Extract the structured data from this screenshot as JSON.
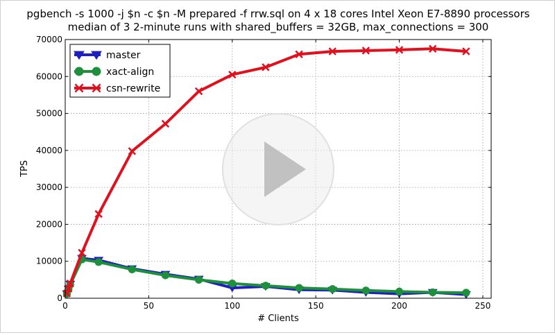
{
  "chart_data": {
    "type": "line",
    "title": "pgbench -s 1000 -j $n -c $n -M prepared -f rrw.sql on 4 x 18 cores Intel Xeon E7-8890 processors",
    "subtitle": "median of 3 2-minute runs with shared_buffers = 32GB, max_connections = 300",
    "xlabel": "# Clients",
    "ylabel": "TPS",
    "xlim": [
      0,
      255
    ],
    "ylim": [
      0,
      70000
    ],
    "x_ticks": [
      "0",
      "50",
      "100",
      "150",
      "200",
      "250"
    ],
    "y_ticks": [
      "0",
      "10000",
      "20000",
      "30000",
      "40000",
      "50000",
      "60000",
      "70000"
    ],
    "grid": true,
    "legend_position": "top-left",
    "x": [
      1,
      2,
      3,
      10,
      20,
      40,
      60,
      80,
      100,
      120,
      140,
      160,
      180,
      200,
      220,
      240
    ],
    "series": [
      {
        "name": "master",
        "color": "#1f1fbf",
        "marker": "triangle-down",
        "values": [
          1200,
          2500,
          3800,
          10800,
          10300,
          8000,
          6500,
          5200,
          2800,
          3200,
          2300,
          2200,
          1600,
          1200,
          1600,
          1000
        ]
      },
      {
        "name": "xact-align",
        "color": "#1e8f3a",
        "marker": "circle",
        "values": [
          1200,
          2500,
          3700,
          10500,
          9800,
          7800,
          6200,
          5000,
          4000,
          3400,
          2800,
          2500,
          2100,
          1800,
          1600,
          1500
        ]
      },
      {
        "name": "csn-rewrite",
        "color": "#e0101e",
        "marker": "x",
        "values": [
          1300,
          2600,
          4000,
          12300,
          22800,
          39800,
          47200,
          56000,
          60500,
          62500,
          66000,
          66800,
          67000,
          67200,
          67500,
          66800
        ]
      }
    ]
  },
  "overlay": {
    "play_icon": "play-icon"
  }
}
